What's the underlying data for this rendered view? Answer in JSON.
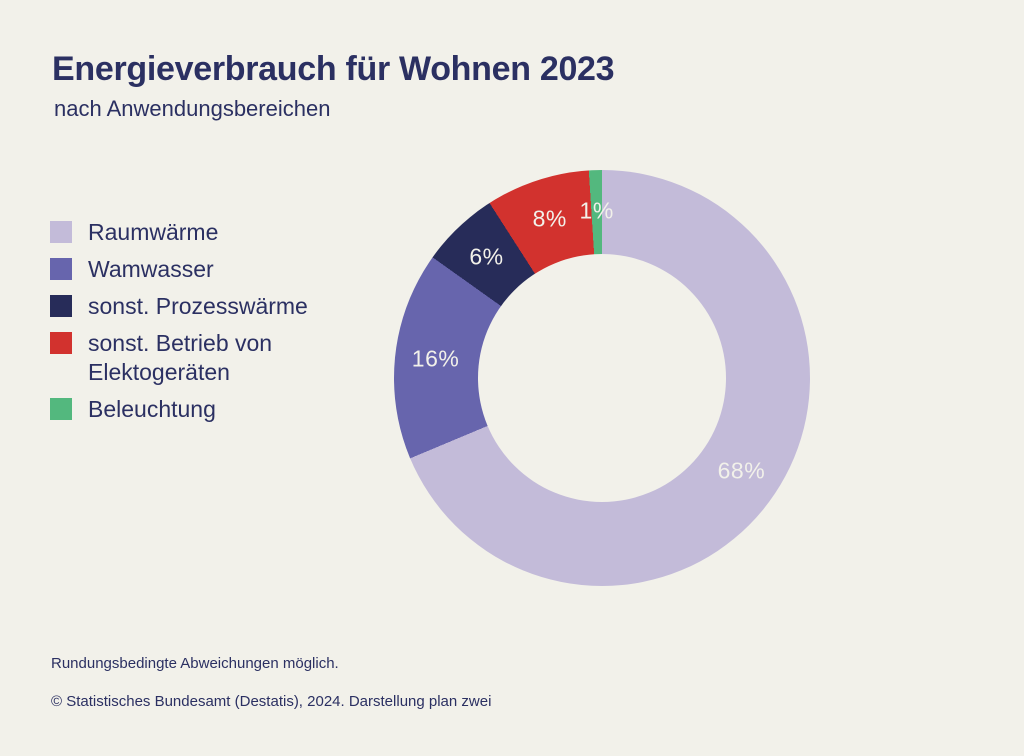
{
  "page": {
    "background": "#f2f1ea",
    "text_color": "#2b3062",
    "title": "Energieverbrauch für Wohnen 2023",
    "subtitle": "nach Anwendungsbereichen",
    "footnote": "Rundungsbedingte Abweichungen möglich.",
    "source": "© Statistisches Bundesamt (Destatis), 2024. Darstellung plan zwei"
  },
  "chart_data": {
    "type": "pie",
    "variant": "donut",
    "title": "Energieverbrauch für Wohnen 2023",
    "subtitle": "nach Anwendungsbereichen",
    "unit": "%",
    "start_angle_deg": 0,
    "direction": "clockwise",
    "legend_position": "left",
    "label_color": "#f2f1ea",
    "inner_radius_ratio": 0.6,
    "slices": [
      {
        "label": "Raumwärme",
        "value": 68,
        "value_label": "68%",
        "color": "#c3bbd9"
      },
      {
        "label": "Wamwasser",
        "value": 16,
        "value_label": "16%",
        "color": "#6765ad"
      },
      {
        "label": "sonst. Prozesswärme",
        "value": 6,
        "value_label": "6%",
        "color": "#272c59"
      },
      {
        "label": "sonst. Betrieb von Elektogeräten",
        "value": 8,
        "value_label": "8%",
        "color": "#d2322e"
      },
      {
        "label": "Beleuchtung",
        "value": 1,
        "value_label": "1%",
        "color": "#53b87e"
      }
    ]
  }
}
